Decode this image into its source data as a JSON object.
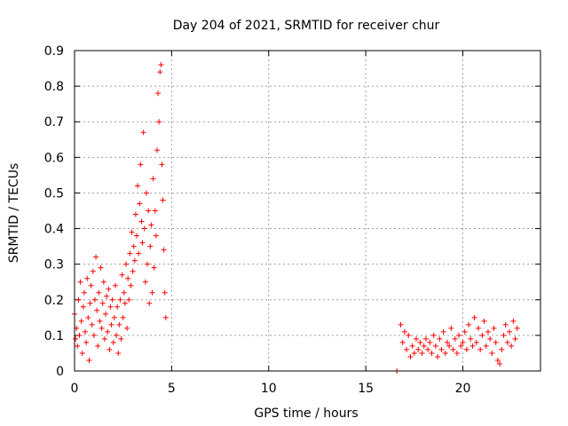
{
  "chart_data": {
    "type": "scatter",
    "title": "Day 204 of 2021, SRMTID for receiver chur",
    "xlabel": "GPS time / hours",
    "ylabel": "SRMTID / TECUs",
    "xlim": [
      0,
      24
    ],
    "ylim": [
      0,
      0.9
    ],
    "xticks": [
      0,
      5,
      10,
      15,
      20
    ],
    "yticks": [
      0,
      0.1,
      0.2,
      0.3,
      0.4,
      0.5,
      0.6,
      0.7,
      0.8,
      0.9
    ],
    "grid": true,
    "marker": "+",
    "color": "#ff0000",
    "series": [
      {
        "name": "SRMTID",
        "points": [
          [
            0.0,
            0.16
          ],
          [
            0.05,
            0.09
          ],
          [
            0.1,
            0.12
          ],
          [
            0.15,
            0.07
          ],
          [
            0.2,
            0.2
          ],
          [
            0.25,
            0.1
          ],
          [
            0.3,
            0.25
          ],
          [
            0.35,
            0.14
          ],
          [
            0.4,
            0.05
          ],
          [
            0.45,
            0.18
          ],
          [
            0.5,
            0.22
          ],
          [
            0.55,
            0.11
          ],
          [
            0.6,
            0.08
          ],
          [
            0.65,
            0.26
          ],
          [
            0.7,
            0.15
          ],
          [
            0.75,
            0.03
          ],
          [
            0.8,
            0.19
          ],
          [
            0.85,
            0.24
          ],
          [
            0.9,
            0.13
          ],
          [
            0.95,
            0.28
          ],
          [
            1.0,
            0.1
          ],
          [
            1.05,
            0.2
          ],
          [
            1.1,
            0.32
          ],
          [
            1.15,
            0.17
          ],
          [
            1.2,
            0.07
          ],
          [
            1.25,
            0.22
          ],
          [
            1.3,
            0.14
          ],
          [
            1.35,
            0.29
          ],
          [
            1.4,
            0.12
          ],
          [
            1.45,
            0.19
          ],
          [
            1.5,
            0.25
          ],
          [
            1.55,
            0.09
          ],
          [
            1.6,
            0.16
          ],
          [
            1.65,
            0.21
          ],
          [
            1.7,
            0.11
          ],
          [
            1.75,
            0.23
          ],
          [
            1.8,
            0.06
          ],
          [
            1.85,
            0.18
          ],
          [
            1.9,
            0.13
          ],
          [
            1.95,
            0.2
          ],
          [
            2.0,
            0.08
          ],
          [
            2.05,
            0.15
          ],
          [
            2.1,
            0.24
          ],
          [
            2.15,
            0.1
          ],
          [
            2.2,
            0.18
          ],
          [
            2.25,
            0.05
          ],
          [
            2.3,
            0.13
          ],
          [
            2.35,
            0.2
          ],
          [
            2.4,
            0.09
          ],
          [
            2.45,
            0.27
          ],
          [
            2.5,
            0.15
          ],
          [
            2.55,
            0.22
          ],
          [
            2.6,
            0.19
          ],
          [
            2.65,
            0.3
          ],
          [
            2.7,
            0.12
          ],
          [
            2.75,
            0.26
          ],
          [
            2.8,
            0.2
          ],
          [
            2.85,
            0.33
          ],
          [
            2.9,
            0.24
          ],
          [
            2.95,
            0.39
          ],
          [
            3.0,
            0.28
          ],
          [
            3.05,
            0.35
          ],
          [
            3.1,
            0.31
          ],
          [
            3.15,
            0.44
          ],
          [
            3.2,
            0.38
          ],
          [
            3.25,
            0.52
          ],
          [
            3.3,
            0.33
          ],
          [
            3.35,
            0.47
          ],
          [
            3.4,
            0.58
          ],
          [
            3.45,
            0.42
          ],
          [
            3.5,
            0.36
          ],
          [
            3.55,
            0.67
          ],
          [
            3.6,
            0.4
          ],
          [
            3.65,
            0.25
          ],
          [
            3.7,
            0.5
          ],
          [
            3.75,
            0.3
          ],
          [
            3.8,
            0.45
          ],
          [
            3.85,
            0.19
          ],
          [
            3.9,
            0.35
          ],
          [
            3.95,
            0.41
          ],
          [
            4.0,
            0.22
          ],
          [
            4.05,
            0.54
          ],
          [
            4.1,
            0.29
          ],
          [
            4.15,
            0.45
          ],
          [
            4.2,
            0.38
          ],
          [
            4.25,
            0.62
          ],
          [
            4.3,
            0.78
          ],
          [
            4.35,
            0.7
          ],
          [
            4.4,
            0.84
          ],
          [
            4.45,
            0.86
          ],
          [
            4.5,
            0.58
          ],
          [
            4.55,
            0.48
          ],
          [
            4.6,
            0.34
          ],
          [
            4.65,
            0.22
          ],
          [
            4.7,
            0.15
          ],
          [
            16.6,
            0.0
          ],
          [
            16.8,
            0.13
          ],
          [
            16.9,
            0.08
          ],
          [
            17.0,
            0.11
          ],
          [
            17.1,
            0.06
          ],
          [
            17.2,
            0.1
          ],
          [
            17.3,
            0.04
          ],
          [
            17.4,
            0.07
          ],
          [
            17.5,
            0.05
          ],
          [
            17.6,
            0.09
          ],
          [
            17.7,
            0.06
          ],
          [
            17.8,
            0.08
          ],
          [
            17.9,
            0.05
          ],
          [
            18.0,
            0.07
          ],
          [
            18.1,
            0.09
          ],
          [
            18.2,
            0.06
          ],
          [
            18.3,
            0.08
          ],
          [
            18.4,
            0.05
          ],
          [
            18.5,
            0.1
          ],
          [
            18.6,
            0.07
          ],
          [
            18.7,
            0.04
          ],
          [
            18.8,
            0.09
          ],
          [
            18.9,
            0.06
          ],
          [
            19.0,
            0.11
          ],
          [
            19.1,
            0.05
          ],
          [
            19.2,
            0.08
          ],
          [
            19.3,
            0.07
          ],
          [
            19.4,
            0.12
          ],
          [
            19.5,
            0.06
          ],
          [
            19.6,
            0.09
          ],
          [
            19.7,
            0.05
          ],
          [
            19.8,
            0.1
          ],
          [
            19.9,
            0.07
          ],
          [
            20.0,
            0.08
          ],
          [
            20.1,
            0.11
          ],
          [
            20.2,
            0.06
          ],
          [
            20.3,
            0.13
          ],
          [
            20.4,
            0.09
          ],
          [
            20.5,
            0.07
          ],
          [
            20.6,
            0.15
          ],
          [
            20.7,
            0.08
          ],
          [
            20.8,
            0.12
          ],
          [
            20.9,
            0.06
          ],
          [
            21.0,
            0.1
          ],
          [
            21.1,
            0.14
          ],
          [
            21.2,
            0.07
          ],
          [
            21.3,
            0.11
          ],
          [
            21.4,
            0.09
          ],
          [
            21.5,
            0.05
          ],
          [
            21.6,
            0.12
          ],
          [
            21.7,
            0.08
          ],
          [
            21.8,
            0.03
          ],
          [
            21.9,
            0.02
          ],
          [
            22.0,
            0.06
          ],
          [
            22.1,
            0.1
          ],
          [
            22.2,
            0.13
          ],
          [
            22.3,
            0.08
          ],
          [
            22.4,
            0.11
          ],
          [
            22.5,
            0.07
          ],
          [
            22.6,
            0.14
          ],
          [
            22.7,
            0.09
          ],
          [
            22.8,
            0.12
          ]
        ]
      }
    ]
  }
}
